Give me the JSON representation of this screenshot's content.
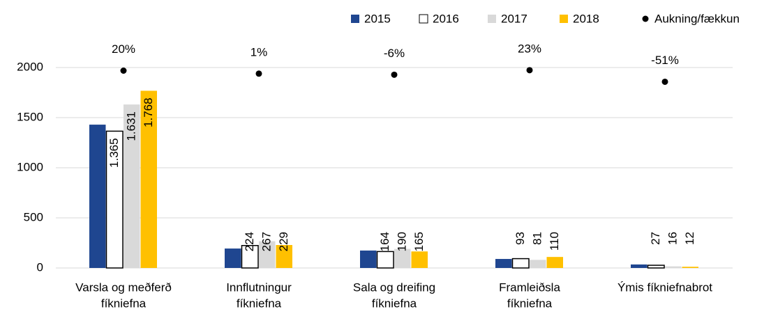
{
  "chart_data": {
    "type": "bar",
    "categories": [
      [
        "Varsla og meðferð",
        "fíkniefna"
      ],
      [
        "Innflutningur",
        "fíkniefna"
      ],
      [
        "Sala og dreifing",
        "fíkniefna"
      ],
      [
        "Framleiðsla",
        "fíkniefna"
      ],
      [
        "Ýmis fíkniefnabrot"
      ]
    ],
    "series": [
      {
        "name": "2015",
        "color": "#1f4690",
        "values": [
          1430,
          194,
          174,
          90,
          35
        ]
      },
      {
        "name": "2016",
        "color": "#ffffff",
        "values": [
          1365,
          224,
          164,
          93,
          27
        ],
        "value_labels": [
          "1.365",
          "224",
          "164",
          "93",
          "27"
        ]
      },
      {
        "name": "2017",
        "color": "#d9d9d9",
        "values": [
          1631,
          267,
          190,
          81,
          16
        ],
        "value_labels": [
          "1.631",
          "267",
          "190",
          "81",
          "16"
        ]
      },
      {
        "name": "2018",
        "color": "#ffc000",
        "values": [
          1768,
          229,
          165,
          110,
          12
        ],
        "value_labels": [
          "1.768",
          "229",
          "165",
          "110",
          "12"
        ]
      },
      {
        "name": "Aukning/fækkun",
        "color": "#000000",
        "type": "scatter",
        "axis": "y2",
        "values": [
          20,
          1,
          -6,
          23,
          -51
        ],
        "value_labels": [
          "20%",
          "1%",
          "-6%",
          "23%",
          "-51%"
        ]
      }
    ],
    "ylim": [
      0,
      2000
    ],
    "yticks": [
      0,
      500,
      1000,
      1500,
      2000
    ],
    "y2lim": [
      -1240,
      40
    ],
    "grid": true,
    "legend": "top-right"
  }
}
